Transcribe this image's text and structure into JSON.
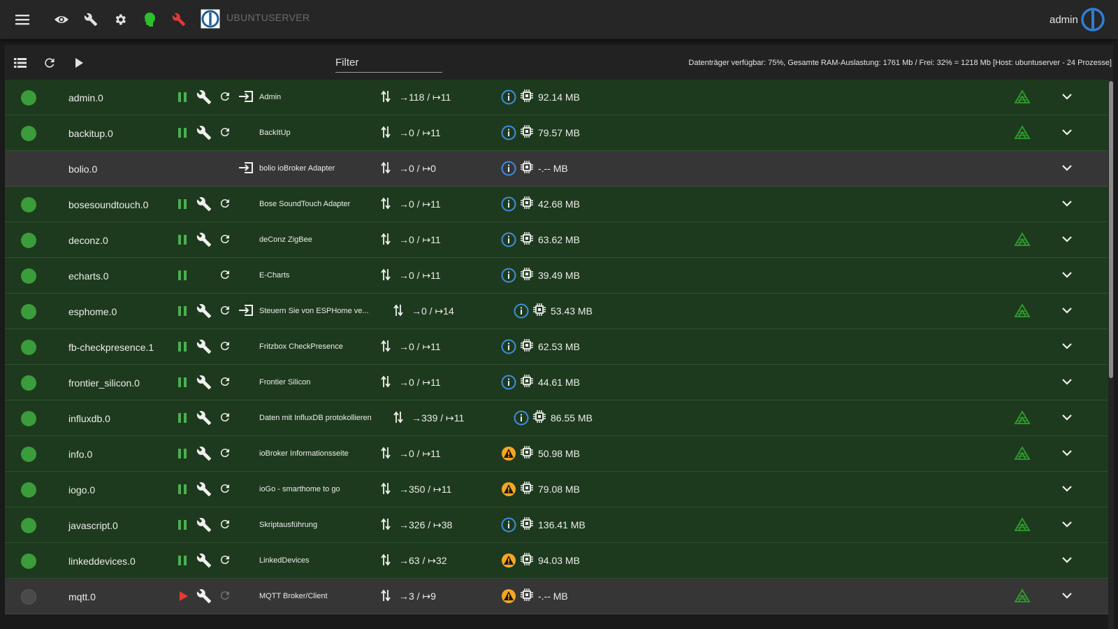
{
  "topbar": {
    "host_name": "UBUNTUSERVER",
    "user_name": "admin",
    "icons": [
      "menu-icon",
      "eye-icon",
      "wrench-icon",
      "gear-icon",
      "expert-head-icon",
      "red-wrench-icon",
      "iobroker-logo-icon"
    ]
  },
  "toolbar": {
    "filter_placeholder": "Filter",
    "stats": "Datenträger verfügbar: 75%, Gesamte RAM-Auslastung: 1761 Mb / Frei: 32% = 1218 Mb [Host: ubuntuserver - 24 Prozesse]"
  },
  "colors": {
    "accent_green": "#3a9c3a",
    "warning_orange": "#f5a623",
    "info_blue": "#3d8ee0",
    "stop_red": "#e53935"
  },
  "rows": [
    {
      "name": "admin.0",
      "title": "Admin",
      "events": "→118 / ↦11",
      "memory": "92.14 MB",
      "running": true,
      "disabled": false,
      "has_settings": true,
      "has_link": true,
      "warn": false,
      "signal": true,
      "shifted": false
    },
    {
      "name": "backitup.0",
      "title": "BackItUp",
      "events": "→0 / ↦11",
      "memory": "79.57 MB",
      "running": true,
      "disabled": false,
      "has_settings": true,
      "has_link": false,
      "warn": false,
      "signal": true,
      "shifted": false
    },
    {
      "name": "bolio.0",
      "title": "bolio ioBroker Adapter",
      "events": "→0 / ↦0",
      "memory": "-.-- MB",
      "running": false,
      "disabled": true,
      "has_settings": false,
      "has_link": true,
      "warn": false,
      "signal": false,
      "shifted": false,
      "no_controls": true
    },
    {
      "name": "bosesoundtouch.0",
      "title": "Bose SoundTouch Adapter",
      "events": "→0 / ↦11",
      "memory": "42.68 MB",
      "running": true,
      "disabled": false,
      "has_settings": true,
      "has_link": false,
      "warn": false,
      "signal": false,
      "shifted": false
    },
    {
      "name": "deconz.0",
      "title": "deConz ZigBee",
      "events": "→0 / ↦11",
      "memory": "63.62 MB",
      "running": true,
      "disabled": false,
      "has_settings": true,
      "has_link": false,
      "warn": false,
      "signal": true,
      "shifted": false
    },
    {
      "name": "echarts.0",
      "title": "E-Charts",
      "events": "→0 / ↦11",
      "memory": "39.49 MB",
      "running": true,
      "disabled": false,
      "has_settings": false,
      "has_link": false,
      "warn": false,
      "signal": false,
      "shifted": false
    },
    {
      "name": "esphome.0",
      "title": "Steuern Sie von ESPHome ve...",
      "events": "→0 / ↦14",
      "memory": "53.43 MB",
      "running": true,
      "disabled": false,
      "has_settings": true,
      "has_link": true,
      "warn": false,
      "signal": true,
      "shifted": true
    },
    {
      "name": "fb-checkpresence.1",
      "title": "Fritzbox CheckPresence",
      "events": "→0 / ↦11",
      "memory": "62.53 MB",
      "running": true,
      "disabled": false,
      "has_settings": true,
      "has_link": false,
      "warn": false,
      "signal": false,
      "shifted": false
    },
    {
      "name": "frontier_silicon.0",
      "title": "Frontier Silicon",
      "events": "→0 / ↦11",
      "memory": "44.61 MB",
      "running": true,
      "disabled": false,
      "has_settings": true,
      "has_link": false,
      "warn": false,
      "signal": false,
      "shifted": false
    },
    {
      "name": "influxdb.0",
      "title": "Daten mit InfluxDB protokollieren",
      "events": "→339 / ↦11",
      "memory": "86.55 MB",
      "running": true,
      "disabled": false,
      "has_settings": true,
      "has_link": false,
      "warn": false,
      "signal": true,
      "shifted": true
    },
    {
      "name": "info.0",
      "title": "ioBroker Informationsseite",
      "events": "→0 / ↦11",
      "memory": "50.98 MB",
      "running": true,
      "disabled": false,
      "has_settings": true,
      "has_link": false,
      "warn": true,
      "signal": true,
      "shifted": false
    },
    {
      "name": "iogo.0",
      "title": "ioGo - smarthome to go",
      "events": "→350 / ↦11",
      "memory": "79.08 MB",
      "running": true,
      "disabled": false,
      "has_settings": true,
      "has_link": false,
      "warn": true,
      "signal": false,
      "shifted": false
    },
    {
      "name": "javascript.0",
      "title": "Skriptausführung",
      "events": "→326 / ↦38",
      "memory": "136.41 MB",
      "running": true,
      "disabled": false,
      "has_settings": true,
      "has_link": false,
      "warn": false,
      "signal": true,
      "shifted": false
    },
    {
      "name": "linkeddevices.0",
      "title": "LinkedDevices",
      "events": "→63 / ↦32",
      "memory": "94.03 MB",
      "running": true,
      "disabled": false,
      "has_settings": true,
      "has_link": false,
      "warn": true,
      "signal": false,
      "shifted": false
    },
    {
      "name": "mqtt.0",
      "title": "MQTT Broker/Client",
      "events": "→3 / ↦9",
      "memory": "-.-- MB",
      "running": false,
      "disabled": true,
      "has_settings": true,
      "has_link": false,
      "warn": true,
      "signal": true,
      "shifted": false,
      "stopped": true
    }
  ]
}
